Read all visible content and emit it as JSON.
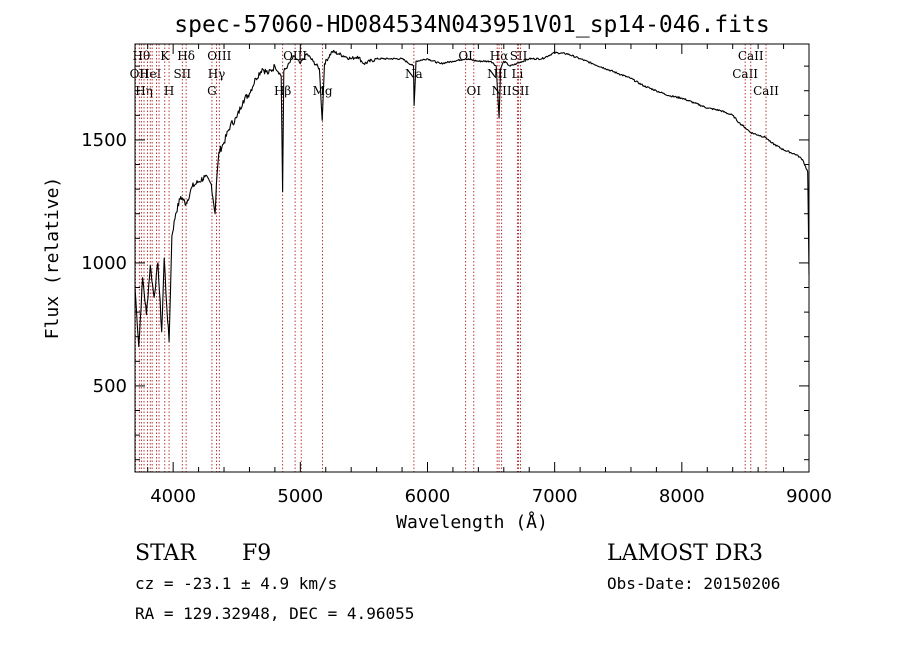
{
  "chart_data": {
    "type": "line",
    "title": "spec-57060-HD084534N043951V01_sp14-046.fits",
    "xlabel": "Wavelength (Å)",
    "ylabel": "Flux (relative)",
    "xlim": [
      3700,
      9000
    ],
    "ylim": [
      150,
      1890
    ],
    "xticks": [
      4000,
      5000,
      6000,
      7000,
      8000,
      9000
    ],
    "yticks": [
      500,
      1000,
      1500
    ],
    "grid": false,
    "series": [
      {
        "color": "#000000",
        "x": [
          3700,
          3730,
          3760,
          3790,
          3820,
          3850,
          3880,
          3910,
          3930,
          3950,
          3968,
          3990,
          4020,
          4060,
          4101,
          4150,
          4200,
          4250,
          4300,
          4330,
          4340,
          4360,
          4400,
          4450,
          4500,
          4550,
          4600,
          4650,
          4700,
          4750,
          4800,
          4850,
          4861,
          4870,
          4900,
          4950,
          5000,
          5050,
          5100,
          5150,
          5172,
          5190,
          5250,
          5300,
          5350,
          5400,
          5450,
          5500,
          5600,
          5700,
          5800,
          5890,
          5895,
          5910,
          6000,
          6100,
          6200,
          6300,
          6400,
          6500,
          6540,
          6563,
          6575,
          6600,
          6650,
          6700,
          6800,
          6900,
          7000,
          7100,
          7200,
          7300,
          7400,
          7500,
          7600,
          7700,
          7800,
          7900,
          8000,
          8100,
          8200,
          8300,
          8400,
          8450,
          8498,
          8542,
          8600,
          8662,
          8700,
          8800,
          8900,
          8950,
          8990,
          9000
        ],
        "y": [
          900,
          660,
          940,
          790,
          990,
          860,
          1000,
          720,
          1020,
          820,
          680,
          1110,
          1200,
          1270,
          1240,
          1310,
          1330,
          1350,
          1320,
          1200,
          1320,
          1450,
          1490,
          1560,
          1590,
          1660,
          1690,
          1750,
          1790,
          1770,
          1800,
          1760,
          1290,
          1780,
          1800,
          1840,
          1810,
          1850,
          1820,
          1790,
          1580,
          1810,
          1860,
          1850,
          1840,
          1830,
          1840,
          1810,
          1830,
          1830,
          1830,
          1800,
          1640,
          1820,
          1830,
          1810,
          1820,
          1830,
          1820,
          1820,
          1800,
          1590,
          1790,
          1820,
          1800,
          1810,
          1830,
          1830,
          1855,
          1850,
          1830,
          1810,
          1790,
          1770,
          1750,
          1720,
          1700,
          1680,
          1670,
          1650,
          1630,
          1620,
          1600,
          1570,
          1550,
          1530,
          1520,
          1510,
          1490,
          1460,
          1440,
          1420,
          1370,
          950
        ]
      }
    ],
    "line_markers": [
      {
        "wl": 3704,
        "label": "",
        "row": 0
      },
      {
        "wl": 3734,
        "label": "OII",
        "row": 1
      },
      {
        "wl": 3750,
        "label": "Hθ",
        "row": 0
      },
      {
        "wl": 3771,
        "label": "Hη",
        "row": 2
      },
      {
        "wl": 3798,
        "label": "",
        "row": 0
      },
      {
        "wl": 3820,
        "label": "HeI",
        "row": 1
      },
      {
        "wl": 3835,
        "label": "",
        "row": 0
      },
      {
        "wl": 3869,
        "label": "",
        "row": 0
      },
      {
        "wl": 3889,
        "label": "",
        "row": 0
      },
      {
        "wl": 3934,
        "label": "K",
        "row": 0
      },
      {
        "wl": 3968,
        "label": "H",
        "row": 2
      },
      {
        "wl": 4072,
        "label": "SII",
        "row": 1
      },
      {
        "wl": 4102,
        "label": "Hδ",
        "row": 0
      },
      {
        "wl": 4305,
        "label": "G",
        "row": 2
      },
      {
        "wl": 4341,
        "label": "Hγ",
        "row": 1
      },
      {
        "wl": 4363,
        "label": "OIII",
        "row": 0
      },
      {
        "wl": 4861,
        "label": "Hβ",
        "row": 2
      },
      {
        "wl": 4959,
        "label": "OIII",
        "row": 0
      },
      {
        "wl": 5007,
        "label": "",
        "row": 0
      },
      {
        "wl": 5175,
        "label": "Mg",
        "row": 2
      },
      {
        "wl": 5893,
        "label": "Na",
        "row": 1
      },
      {
        "wl": 6300,
        "label": "OI",
        "row": 0
      },
      {
        "wl": 6364,
        "label": "OI",
        "row": 2
      },
      {
        "wl": 6548,
        "label": "NII",
        "row": 1
      },
      {
        "wl": 6563,
        "label": "Hα",
        "row": 0
      },
      {
        "wl": 6583,
        "label": "NII",
        "row": 2
      },
      {
        "wl": 6707,
        "label": "Li",
        "row": 1
      },
      {
        "wl": 6716,
        "label": "SII",
        "row": 0
      },
      {
        "wl": 6731,
        "label": "SII",
        "row": 2
      },
      {
        "wl": 8498,
        "label": "CaII",
        "row": 1
      },
      {
        "wl": 8542,
        "label": "CaII",
        "row": 0
      },
      {
        "wl": 8662,
        "label": "CaII",
        "row": 2
      }
    ]
  },
  "info": {
    "object_class": "STAR",
    "subclass": "F9",
    "cz": "cz = -23.1 ± 4.9 km/s",
    "radec": "RA = 129.32948, DEC =   4.96055",
    "survey": "LAMOST DR3",
    "obs_date": "Obs-Date: 20150206"
  }
}
